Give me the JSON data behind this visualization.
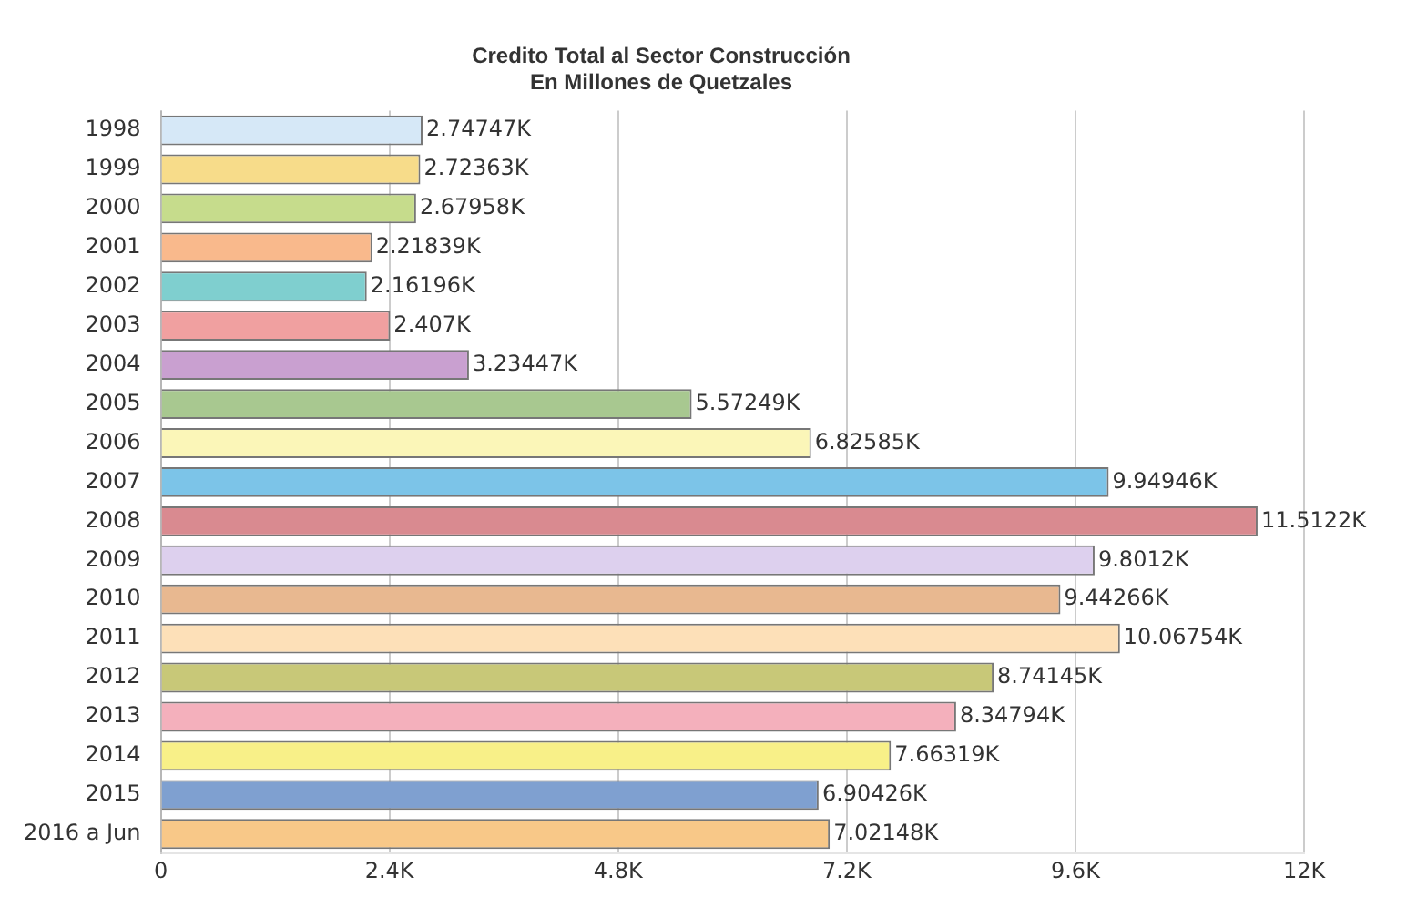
{
  "chart_data": {
    "type": "bar",
    "orientation": "horizontal",
    "title": [
      "Credito Total al Sector Construcción",
      "En Millones de Quetzales"
    ],
    "categories": [
      "1998",
      "1999",
      "2000",
      "2001",
      "2002",
      "2003",
      "2004",
      "2005",
      "2006",
      "2007",
      "2008",
      "2009",
      "2010",
      "2011",
      "2012",
      "2013",
      "2014",
      "2015",
      "2016 a Jun"
    ],
    "values": [
      2.74747,
      2.72363,
      2.67958,
      2.21839,
      2.16196,
      2.407,
      3.23447,
      5.57249,
      6.82585,
      9.94946,
      11.5122,
      9.8012,
      9.44266,
      10.06754,
      8.74145,
      8.34794,
      7.66319,
      6.90426,
      7.02148
    ],
    "value_labels": [
      "2.74747K",
      "2.72363K",
      "2.67958K",
      "2.21839K",
      "2.16196K",
      "2.407K",
      "3.23447K",
      "5.57249K",
      "6.82585K",
      "9.94946K",
      "11.5122K",
      "9.8012K",
      "9.44266K",
      "10.06754K",
      "8.74145K",
      "8.34794K",
      "7.66319K",
      "6.90426K",
      "7.02148K"
    ],
    "colors": [
      "#d6e8f7",
      "#f7dc8a",
      "#c6dc8c",
      "#f9b98c",
      "#7fcfcf",
      "#f0a0a0",
      "#c9a0d0",
      "#a8c890",
      "#fbf6b8",
      "#7cc4e8",
      "#d98a90",
      "#ddd0ee",
      "#e8b890",
      "#fde0b8",
      "#c8c878",
      "#f4b0bc",
      "#f8f088",
      "#7fa0d0",
      "#f8c888"
    ],
    "xlim": [
      0,
      12
    ],
    "xticks": [
      0,
      {
        "value": 2.4,
        "label": "2.4K"
      },
      {
        "value": 4.8,
        "label": "4.8K"
      },
      {
        "value": 7.2,
        "label": "7.2K"
      },
      {
        "value": 9.6,
        "label": "9.6K"
      },
      {
        "value": 12,
        "label": "12K"
      }
    ],
    "grid": "x",
    "legend": false
  }
}
